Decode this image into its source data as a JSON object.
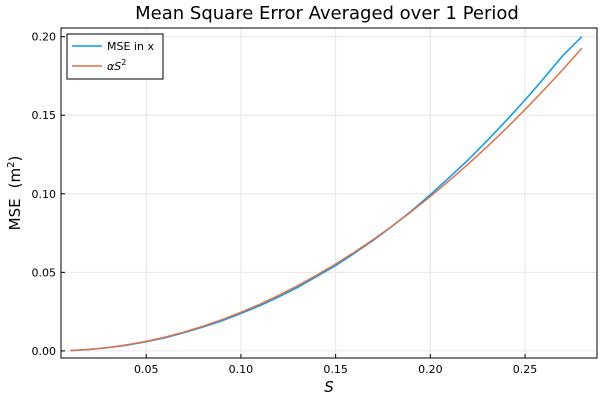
{
  "chart_data": {
    "type": "line",
    "title": "Mean Square Error Averaged over 1 Period",
    "xlabel": "S",
    "ylabel_main": "MSE",
    "ylabel_unit_base": "(m",
    "ylabel_unit_exp": "2",
    "ylabel_unit_close": ")",
    "xlim": [
      0.005,
      0.288
    ],
    "ylim": [
      -0.0045,
      0.2055
    ],
    "xticks": [
      0.05,
      0.1,
      0.15,
      0.2,
      0.25
    ],
    "xtick_labels": [
      "0.05",
      "0.10",
      "0.15",
      "0.20",
      "0.25"
    ],
    "yticks": [
      0.0,
      0.05,
      0.1,
      0.15,
      0.2
    ],
    "ytick_labels": [
      "0.00",
      "0.05",
      "0.10",
      "0.15",
      "0.20"
    ],
    "grid": true,
    "legend_position": "top-left",
    "series": [
      {
        "name": "MSE in x",
        "color": "#009AFA",
        "x": [
          0.01,
          0.02,
          0.03,
          0.04,
          0.05,
          0.06,
          0.07,
          0.08,
          0.09,
          0.1,
          0.11,
          0.12,
          0.13,
          0.14,
          0.15,
          0.16,
          0.17,
          0.18,
          0.19,
          0.2,
          0.21,
          0.22,
          0.23,
          0.24,
          0.25,
          0.26,
          0.27,
          0.28
        ],
        "y": [
          0.0002,
          0.0009,
          0.0021,
          0.0037,
          0.0058,
          0.0084,
          0.0116,
          0.0152,
          0.0192,
          0.0239,
          0.0288,
          0.0344,
          0.0405,
          0.0474,
          0.0543,
          0.0622,
          0.0705,
          0.0795,
          0.0891,
          0.0994,
          0.1103,
          0.1216,
          0.1338,
          0.1465,
          0.1597,
          0.1736,
          0.188,
          0.2
        ]
      },
      {
        "name_prefix": "α",
        "name_base": "S",
        "name_exp": "2",
        "color": "#E26F46",
        "x": [
          0.01,
          0.02,
          0.03,
          0.04,
          0.05,
          0.06,
          0.07,
          0.08,
          0.09,
          0.1,
          0.11,
          0.12,
          0.13,
          0.14,
          0.15,
          0.16,
          0.17,
          0.18,
          0.19,
          0.2,
          0.21,
          0.22,
          0.23,
          0.24,
          0.25,
          0.26,
          0.27,
          0.28
        ],
        "y": [
          0.0002,
          0.001,
          0.0022,
          0.0039,
          0.0061,
          0.0088,
          0.012,
          0.0157,
          0.0199,
          0.0246,
          0.0297,
          0.0354,
          0.0415,
          0.0482,
          0.0553,
          0.0629,
          0.071,
          0.0796,
          0.0887,
          0.0983,
          0.1084,
          0.1189,
          0.13,
          0.1415,
          0.1536,
          0.1661,
          0.1791,
          0.1926
        ]
      }
    ]
  }
}
